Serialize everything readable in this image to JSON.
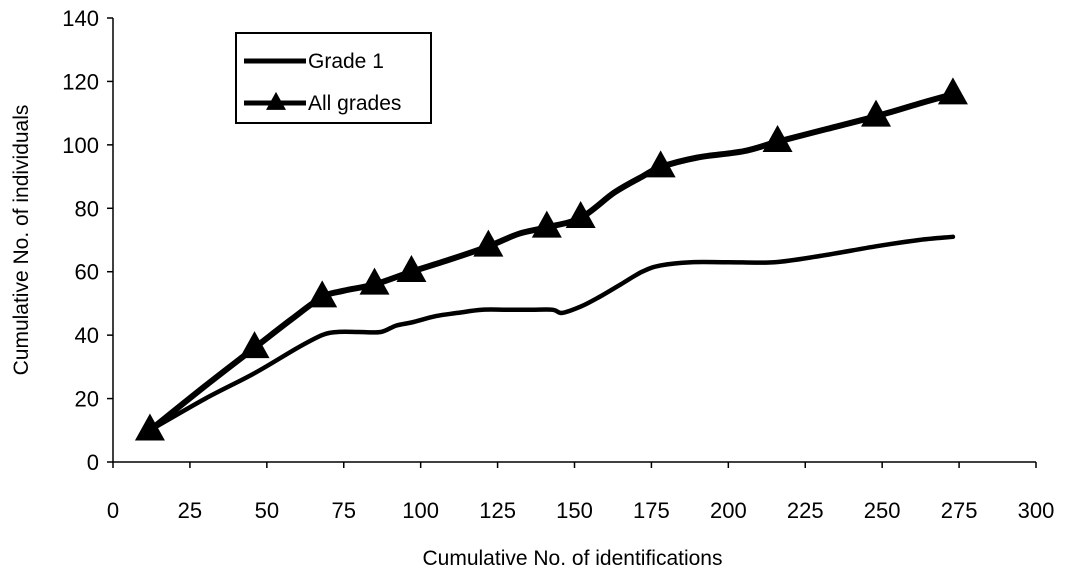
{
  "chart_data": {
    "type": "line",
    "xlabel": "Cumulative No. of identifications",
    "ylabel": "Cumulative No. of individuals",
    "xlim": [
      0,
      300
    ],
    "ylim": [
      0,
      140
    ],
    "xticks": [
      0,
      25,
      50,
      75,
      100,
      125,
      150,
      175,
      200,
      225,
      250,
      275,
      300
    ],
    "yticks": [
      0,
      20,
      40,
      60,
      80,
      100,
      120,
      140
    ],
    "grid": false,
    "legend_position": "top-left",
    "series": [
      {
        "name": "Grade 1",
        "marker": "none",
        "color": "#000000",
        "x": [
          12,
          30,
          46,
          60,
          68,
          73,
          80,
          87,
          92,
          97,
          105,
          112,
          120,
          128,
          136,
          143,
          146,
          152,
          158,
          165,
          172,
          178,
          188,
          200,
          215,
          230,
          248,
          262,
          273
        ],
        "y": [
          10,
          20,
          28,
          36,
          40,
          41,
          41,
          41,
          43,
          44,
          46,
          47,
          48,
          48,
          48,
          48,
          47,
          49,
          52,
          56,
          60,
          62,
          63,
          63,
          63,
          65,
          68,
          70,
          71
        ]
      },
      {
        "name": "All grades",
        "marker": "triangle",
        "color": "#000000",
        "x": [
          12,
          46,
          68,
          85,
          97,
          122,
          141,
          152,
          178,
          216,
          248,
          273
        ],
        "y": [
          10,
          36,
          52,
          56,
          60,
          68,
          74,
          77,
          93,
          101,
          109,
          116
        ],
        "line_x": [
          12,
          30,
          46,
          58,
          68,
          75,
          85,
          97,
          110,
          122,
          132,
          141,
          152,
          163,
          172,
          178,
          190,
          205,
          216,
          232,
          248,
          262,
          273
        ],
        "line_y": [
          10,
          24,
          36,
          45,
          52,
          54,
          56,
          60,
          64,
          68,
          72,
          74,
          77,
          85,
          90,
          93,
          96,
          98,
          101,
          105,
          109,
          113,
          116
        ]
      }
    ]
  }
}
